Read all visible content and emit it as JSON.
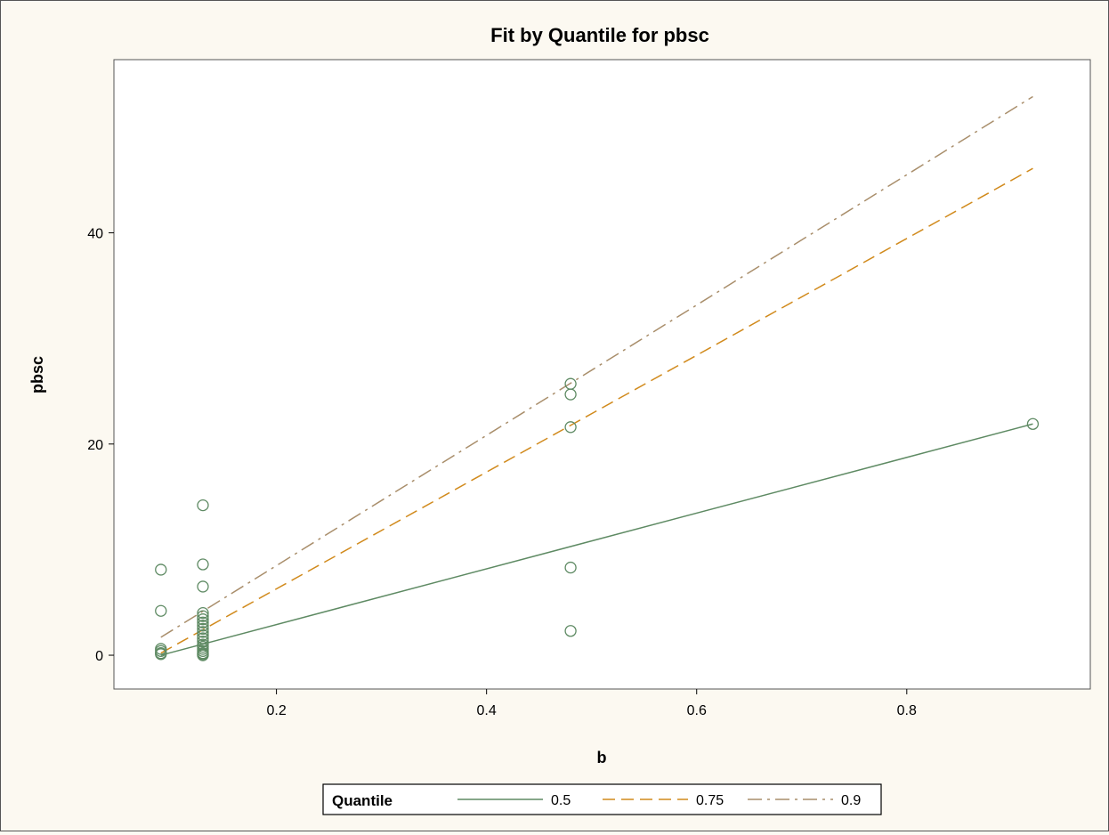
{
  "chart_data": {
    "type": "scatter",
    "title": "Fit by Quantile for pbsc",
    "xlabel": "b",
    "ylabel": "pbsc",
    "xlim": [
      0.0453,
      0.9747
    ],
    "ylim": [
      -3.2,
      56.4
    ],
    "x_ticks": [
      0.2,
      0.4,
      0.6,
      0.8
    ],
    "y_ticks": [
      0,
      20,
      40
    ],
    "grid": false,
    "points": {
      "x": [
        0.09,
        0.09,
        0.09,
        0.09,
        0.09,
        0.09,
        0.13,
        0.13,
        0.13,
        0.13,
        0.13,
        0.13,
        0.13,
        0.13,
        0.13,
        0.13,
        0.13,
        0.13,
        0.13,
        0.13,
        0.13,
        0.13,
        0.13,
        0.13,
        0.13,
        0.13,
        0.48,
        0.48,
        0.48,
        0.48,
        0.48,
        0.92
      ],
      "y": [
        8.1,
        4.2,
        0.6,
        0.4,
        0.2,
        0.1,
        14.2,
        8.6,
        6.5,
        4.0,
        3.7,
        3.4,
        3.1,
        2.8,
        2.5,
        2.2,
        1.9,
        1.6,
        1.3,
        1.0,
        0.8,
        0.6,
        0.4,
        0.2,
        0.1,
        0.0,
        25.7,
        24.7,
        21.6,
        8.3,
        2.3,
        21.9
      ]
    },
    "series": [
      {
        "name": "0.5",
        "x": [
          0.09,
          0.92
        ],
        "y": [
          0.0,
          21.9
        ],
        "color": "#5e8a63",
        "style": "solid"
      },
      {
        "name": "0.75",
        "x": [
          0.09,
          0.92
        ],
        "y": [
          0.2,
          46.1
        ],
        "color": "#d18a1c",
        "style": "dashed"
      },
      {
        "name": "0.9",
        "x": [
          0.09,
          0.92
        ],
        "y": [
          1.7,
          52.9
        ],
        "color": "#a98e6b",
        "style": "dashdot"
      }
    ],
    "legend": {
      "title": "Quantile",
      "placement": "bottom-center"
    },
    "colors": {
      "marker": "#5e8a63"
    }
  }
}
